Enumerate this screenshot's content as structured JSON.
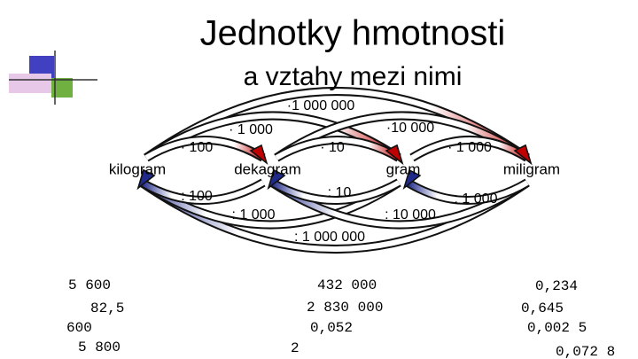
{
  "header": {
    "title": "Jednotky hmotnosti",
    "subtitle": "a vztahy mezi nimi"
  },
  "units": [
    "kilogram",
    "dekagram",
    "gram",
    "miligram"
  ],
  "multiply": [
    "·1 000 000",
    "· 1 000",
    "·10 000",
    "· 100",
    "· 10",
    "· 1 000"
  ],
  "divide": [
    ": 100",
    ": 10",
    ": 1 000",
    ": 1 000",
    ": 10 000",
    ": 1 000 000"
  ],
  "columns": [
    [
      "5 600",
      "82,5",
      "600",
      "5 800"
    ],
    [
      "432 000",
      "2 830 000",
      "0,052",
      "2"
    ],
    [
      "0,234",
      "0,645",
      "0,002 5",
      "0,072 8"
    ]
  ]
}
